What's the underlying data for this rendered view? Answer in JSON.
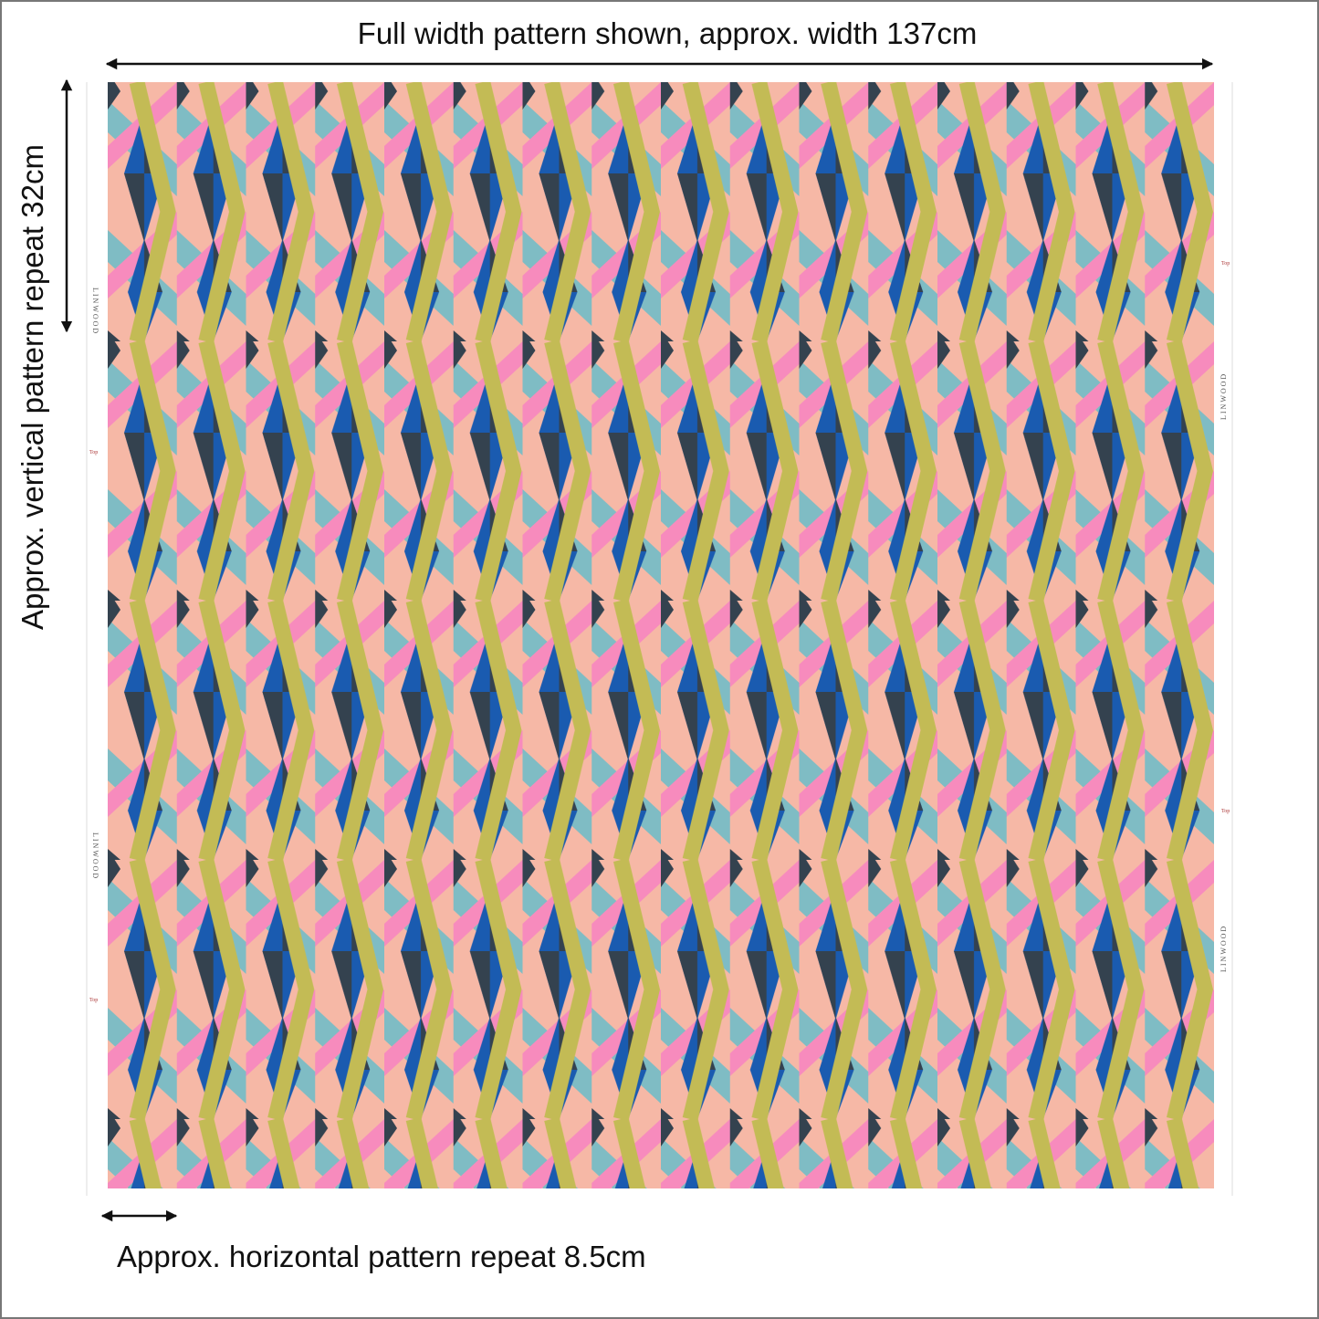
{
  "annotations": {
    "width": "Full width pattern shown, approx. width 137cm",
    "vertical_repeat": "Approx. vertical pattern repeat 32cm",
    "horizontal_repeat": "Approx. horizontal pattern repeat 8.5cm"
  },
  "selvedge": {
    "brand": "LINWOOD",
    "mark": "Top"
  }
}
